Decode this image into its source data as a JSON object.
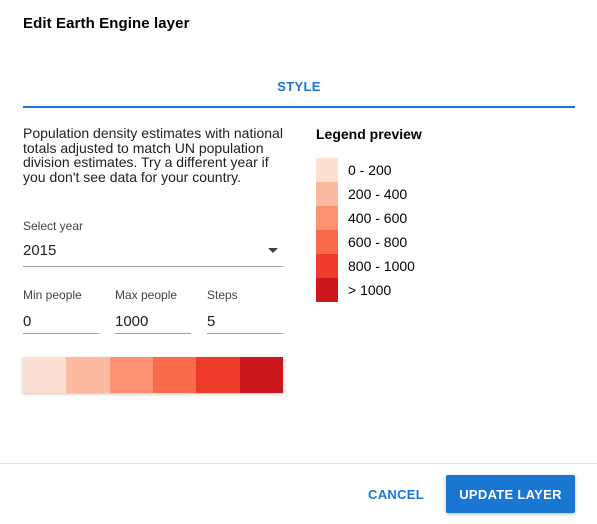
{
  "dialog": {
    "title": "Edit Earth Engine layer"
  },
  "tabs": [
    {
      "label": "STYLE",
      "active": true
    }
  ],
  "description": "Population density estimates with national totals adjusted to match UN population division estimates. Try a different year if you don't see data for your country.",
  "year": {
    "label": "Select year",
    "value": "2015"
  },
  "min_people": {
    "label": "Min people",
    "value": "0"
  },
  "max_people": {
    "label": "Max people",
    "value": "1000"
  },
  "steps": {
    "label": "Steps",
    "value": "5"
  },
  "color_scale": [
    "#fee0d2",
    "#fcbba1",
    "#fc9272",
    "#fb6a4a",
    "#ef3b2c",
    "#cb181d"
  ],
  "legend": {
    "title": "Legend preview",
    "items": [
      {
        "label": "0 - 200",
        "color": "#fee0d2"
      },
      {
        "label": "200 - 400",
        "color": "#fcbba1"
      },
      {
        "label": "400 - 600",
        "color": "#fc9272"
      },
      {
        "label": "600 - 800",
        "color": "#fb6a4a"
      },
      {
        "label": "800 - 1000",
        "color": "#ef3b2c"
      },
      {
        "label": "> 1000",
        "color": "#cb181d"
      }
    ]
  },
  "actions": {
    "cancel_label": "CANCEL",
    "update_label": "UPDATE LAYER"
  },
  "colors": {
    "accent": "#1976d2"
  }
}
